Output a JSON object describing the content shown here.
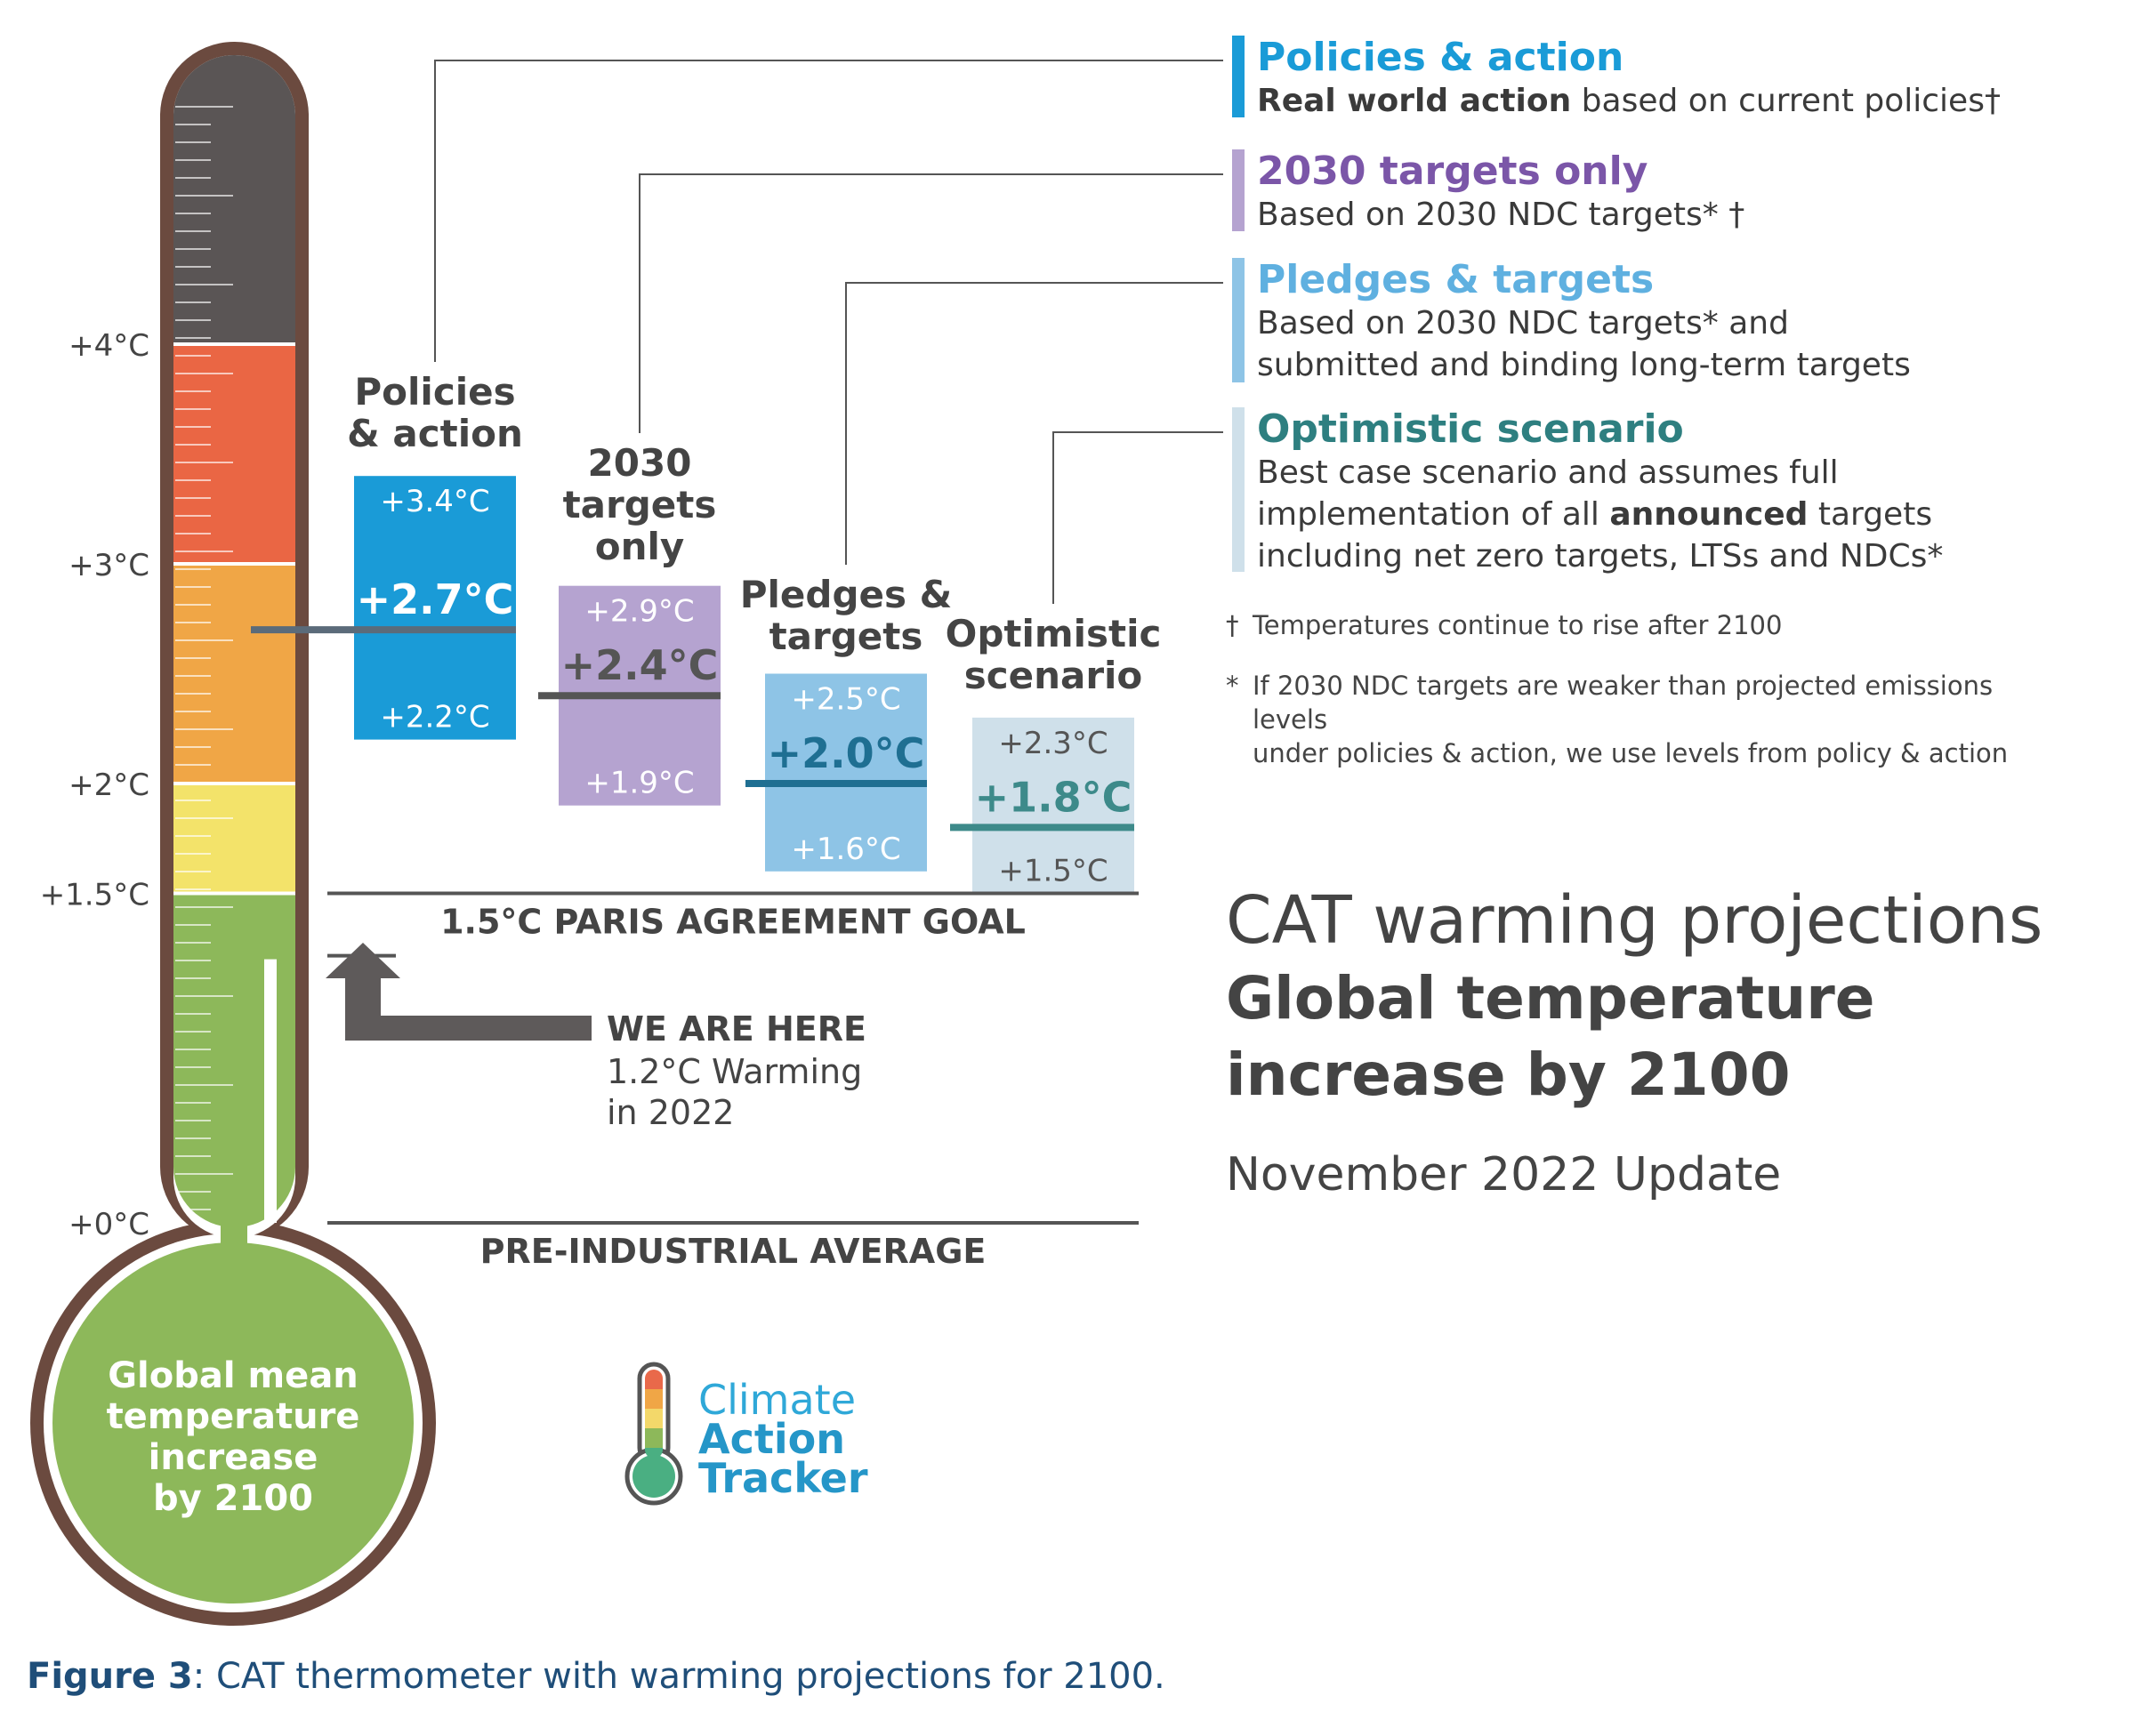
{
  "chart_data": {
    "type": "bar",
    "title": "CAT warming projections",
    "subtitle": "Global temperature increase by 2100",
    "update": "November 2022 Update",
    "yunit": "°C",
    "ylim": [
      0,
      5
    ],
    "yticks": [
      {
        "value": 4,
        "label": "+4°C"
      },
      {
        "value": 3,
        "label": "+3°C"
      },
      {
        "value": 2,
        "label": "+2°C"
      },
      {
        "value": 1.5,
        "label": "+1.5°C"
      },
      {
        "value": 0,
        "label": "+0°C"
      }
    ],
    "thermometer_bands": [
      {
        "from": 4,
        "to": 5,
        "color": "#5a5555"
      },
      {
        "from": 3,
        "to": 4,
        "color": "#ea6644"
      },
      {
        "from": 2,
        "to": 3,
        "color": "#f0a646"
      },
      {
        "from": 1.5,
        "to": 2,
        "color": "#f3e36a"
      },
      {
        "from": 0,
        "to": 1.5,
        "color": "#8db85a"
      }
    ],
    "bulb_label": [
      "Global mean",
      "temperature",
      "increase",
      "by 2100"
    ],
    "scenarios": [
      {
        "name": "Policies & action",
        "label_lines": [
          "Policies",
          "& action"
        ],
        "low": 2.2,
        "mid": 2.7,
        "high": 3.4,
        "low_label": "+2.2°C",
        "mid_label": "+2.7°C",
        "high_label": "+3.4°C",
        "color": "#1a9bd7",
        "line_color": "#5b6b7a",
        "text_color": "#ffffff"
      },
      {
        "name": "2030 targets only",
        "label_lines": [
          "2030",
          "targets",
          "only"
        ],
        "low": 1.9,
        "mid": 2.4,
        "high": 2.9,
        "low_label": "+1.9°C",
        "mid_label": "+2.4°C",
        "high_label": "+2.9°C",
        "color": "#b5a3d0",
        "line_color": "#555555",
        "text_color": "#ffffff"
      },
      {
        "name": "Pledges & targets",
        "label_lines": [
          "Pledges &",
          "targets"
        ],
        "low": 1.6,
        "mid": 2.0,
        "high": 2.5,
        "low_label": "+1.6°C",
        "mid_label": "+2.0°C",
        "high_label": "+2.5°C",
        "color": "#8ec4e6",
        "line_color": "#1f6f92",
        "text_color": "#ffffff"
      },
      {
        "name": "Optimistic scenario",
        "label_lines": [
          "Optimistic",
          "scenario"
        ],
        "low": 1.5,
        "mid": 1.8,
        "high": 2.3,
        "low_label": "+1.5°C",
        "mid_label": "+1.8°C",
        "high_label": "+2.3°C",
        "color": "#cfe0ea",
        "line_color": "#3d8a8a",
        "text_color": "#555555"
      }
    ],
    "reference_lines": [
      {
        "value": 1.5,
        "label": "1.5°C PARIS AGREEMENT GOAL"
      },
      {
        "value": 0,
        "label": "PRE-INDUSTRIAL AVERAGE"
      }
    ],
    "current": {
      "value": 1.2,
      "label": "WE ARE HERE",
      "detail_lines": [
        "1.2°C Warming",
        "in 2022"
      ]
    }
  },
  "legend": [
    {
      "title": "Policies & action",
      "color": "#1a9bd7",
      "bar_color": "#1a9bd7",
      "lines": [
        {
          "bold": "Real world action",
          "text": " based on current policies†"
        }
      ]
    },
    {
      "title": "2030 targets only",
      "color": "#7b56a8",
      "bar_color": "#b5a3d0",
      "lines": [
        {
          "bold": "",
          "text": "Based on 2030 NDC targets* †"
        }
      ]
    },
    {
      "title": "Pledges & targets",
      "color": "#5fb0e0",
      "bar_color": "#8ec4e6",
      "lines": [
        {
          "bold": "",
          "text": "Based on 2030 NDC targets* and"
        },
        {
          "bold": "",
          "text": "submitted and binding long-term targets"
        }
      ]
    },
    {
      "title": "Optimistic scenario",
      "color": "#2e7f80",
      "bar_color": "#cfe0ea",
      "lines": [
        {
          "bold": "",
          "text": "Best case scenario and assumes full"
        },
        {
          "pre": "implementation of all ",
          "bold": "announced",
          "text": " targets"
        },
        {
          "bold": "",
          "text": "including net zero targets, LTSs and NDCs*"
        }
      ]
    }
  ],
  "notes": {
    "dagger_symbol": "†",
    "dagger": "Temperatures continue to rise after 2100",
    "star_symbol": "*",
    "star_line1": "If 2030 NDC targets are weaker than projected emissions levels",
    "star_line2": "under policies & action, we use levels from policy & action"
  },
  "logo": {
    "line1": "Climate",
    "line2": "Action",
    "line3": "Tracker",
    "color1": "#2fa8d8",
    "color2": "#2596c8"
  },
  "caption": {
    "bold": "Figure 3",
    "text": ": CAT thermometer with warming projections for 2100."
  }
}
